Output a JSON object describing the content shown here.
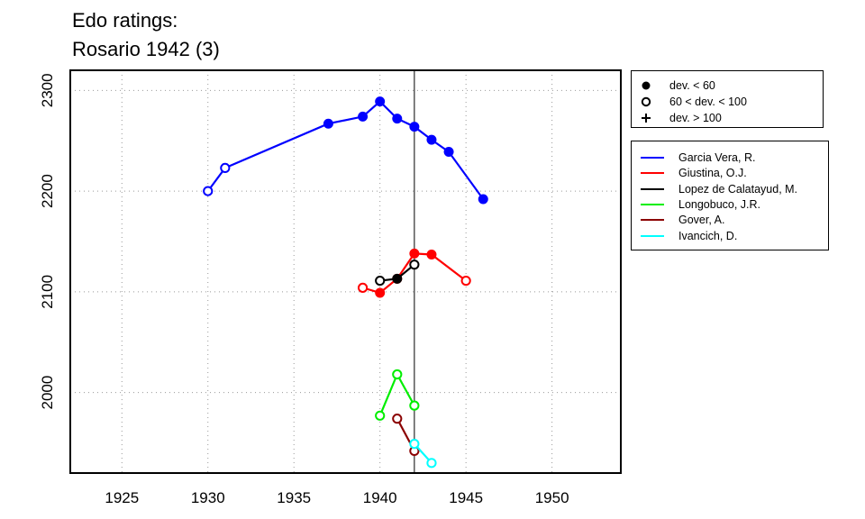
{
  "title": [
    "Edo ratings:",
    "Rosario 1942 (3)"
  ],
  "chart_data": {
    "type": "line",
    "title": "Edo ratings: Rosario 1942 (3)",
    "xlim": [
      1922,
      1954
    ],
    "ylim": [
      1920,
      2320
    ],
    "x_ticks": [
      1925,
      1930,
      1935,
      1940,
      1945,
      1950
    ],
    "y_ticks": [
      2000,
      2100,
      2200,
      2300
    ],
    "grid": true,
    "vline": 1942,
    "legend_position": "top-right, outside plot",
    "deviation_legend": [
      {
        "symbol": "filled-circle",
        "label": "dev. < 60"
      },
      {
        "symbol": "open-circle",
        "label": "60 < dev. < 100"
      },
      {
        "symbol": "plus",
        "label": "dev. > 100"
      }
    ],
    "series": [
      {
        "name": "Garcia Vera, R.",
        "color": "#0000ff",
        "points": [
          [
            1930,
            2200,
            "open"
          ],
          [
            1931,
            2223,
            "open"
          ],
          [
            1937,
            2267,
            "filled"
          ],
          [
            1939,
            2274,
            "filled"
          ],
          [
            1940,
            2289,
            "filled"
          ],
          [
            1941,
            2272,
            "filled"
          ],
          [
            1942,
            2264,
            "filled"
          ],
          [
            1943,
            2251,
            "filled"
          ],
          [
            1944,
            2239,
            "filled"
          ],
          [
            1946,
            2192,
            "filled"
          ]
        ]
      },
      {
        "name": "Giustina, O.J.",
        "color": "#ff0000",
        "points": [
          [
            1939,
            2104,
            "open"
          ],
          [
            1940,
            2099,
            "filled"
          ],
          [
            1941,
            2113,
            "filled"
          ],
          [
            1942,
            2138,
            "filled"
          ],
          [
            1943,
            2137,
            "filled"
          ],
          [
            1945,
            2111,
            "open"
          ]
        ]
      },
      {
        "name": "Lopez de Calatayud, M.",
        "color": "#000000",
        "points": [
          [
            1940,
            2111,
            "open"
          ],
          [
            1941,
            2113,
            "filled"
          ],
          [
            1942,
            2127,
            "open"
          ]
        ]
      },
      {
        "name": "Longobuco, J.R.",
        "color": "#00ee00",
        "points": [
          [
            1940,
            1977,
            "open"
          ],
          [
            1941,
            2018,
            "open"
          ],
          [
            1942,
            1987,
            "open"
          ]
        ]
      },
      {
        "name": "Gover, A.",
        "color": "#8b0000",
        "points": [
          [
            1941,
            1974,
            "open"
          ],
          [
            1942,
            1942,
            "open"
          ]
        ]
      },
      {
        "name": "Ivancich, D.",
        "color": "#00ffff",
        "points": [
          [
            1942,
            1949,
            "open"
          ],
          [
            1943,
            1930,
            "open"
          ]
        ]
      }
    ]
  }
}
